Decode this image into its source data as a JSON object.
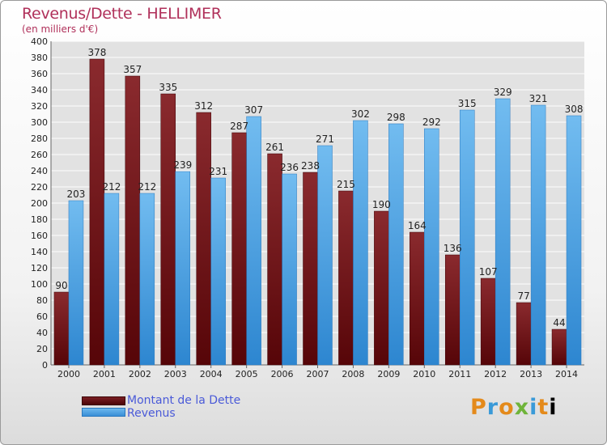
{
  "title": "Revenus/Dette - HELLIMER",
  "subtitle": "(en milliers d'€)",
  "legend": {
    "dette_label": "Montant de la Dette",
    "revenus_label": "Revenus"
  },
  "logo_text": "Proxiti",
  "colors": {
    "title": "#b0305a",
    "dette_top": "#8a2a2e",
    "dette_bottom": "#560508",
    "revenus_top": "#72bcf0",
    "revenus_bottom": "#2d86d0",
    "axis_text": "#222222",
    "grid": "#ffffff"
  },
  "chart_data": {
    "type": "bar",
    "categories": [
      "2000",
      "2001",
      "2002",
      "2003",
      "2004",
      "2005",
      "2006",
      "2007",
      "2008",
      "2009",
      "2010",
      "2011",
      "2012",
      "2013",
      "2014"
    ],
    "series": [
      {
        "name": "Montant de la Dette",
        "values": [
          90,
          378,
          357,
          335,
          312,
          287,
          261,
          238,
          215,
          190,
          164,
          136,
          107,
          77,
          44
        ]
      },
      {
        "name": "Revenus",
        "values": [
          203,
          212,
          212,
          239,
          231,
          307,
          236,
          271,
          302,
          298,
          292,
          315,
          329,
          321,
          308
        ]
      }
    ],
    "ylim": [
      0,
      400
    ],
    "ytick_step": 20,
    "grid": true,
    "legend_position": "bottom-left"
  }
}
